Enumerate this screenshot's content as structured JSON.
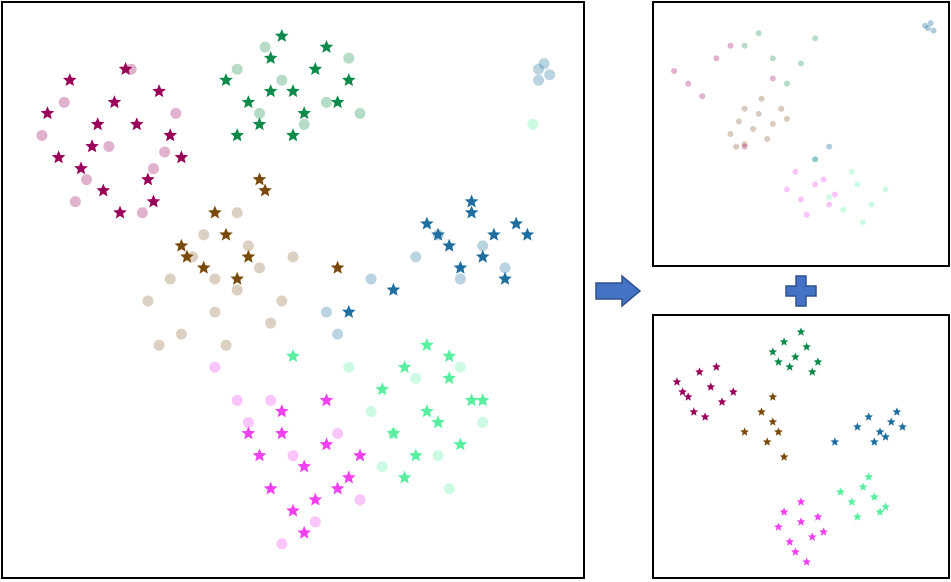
{
  "chart_data": [
    {
      "type": "scatter",
      "xlim": [
        0,
        100
      ],
      "ylim": [
        0,
        100
      ],
      "series": [
        {
          "color": "#9b0059",
          "marker": "circle",
          "opacity": 0.3,
          "x": [
            5,
            9,
            13,
            17,
            21,
            25,
            29,
            11,
            23,
            27
          ],
          "values": [
            78,
            84,
            70,
            76,
            90,
            72,
            82,
            66,
            64,
            75
          ]
        },
        {
          "color": "#0e8a4a",
          "marker": "circle",
          "opacity": 0.3,
          "x": [
            40,
            44,
            48,
            52,
            56,
            60,
            62,
            45
          ],
          "values": [
            90,
            82,
            88,
            80,
            84,
            92,
            82,
            94
          ]
        },
        {
          "color": "#a88a6a",
          "marker": "circle",
          "opacity": 0.4,
          "x": [
            24,
            28,
            32,
            36,
            40,
            44,
            48,
            30,
            34,
            38,
            42,
            46,
            26,
            40,
            36,
            50
          ],
          "values": [
            48,
            52,
            56,
            46,
            50,
            54,
            48,
            42,
            60,
            40,
            58,
            44,
            40,
            64,
            52,
            56
          ]
        },
        {
          "color": "#1e6fa0",
          "marker": "circle",
          "opacity": 0.3,
          "x": [
            72,
            76,
            80,
            84,
            88,
            94,
            95,
            96,
            94,
            56,
            58,
            64
          ],
          "values": [
            56,
            60,
            52,
            58,
            54,
            90,
            91,
            89,
            88,
            46,
            42,
            52
          ]
        },
        {
          "color": "#58f0a0",
          "marker": "circle",
          "opacity": 0.3,
          "x": [
            64,
            68,
            72,
            76,
            80,
            84,
            66,
            78,
            93,
            60
          ],
          "values": [
            28,
            24,
            34,
            20,
            36,
            26,
            18,
            14,
            80,
            36
          ]
        },
        {
          "color": "#f040f0",
          "marker": "circle",
          "opacity": 0.3,
          "x": [
            42,
            46,
            50,
            54,
            58,
            62,
            40,
            48,
            36
          ],
          "values": [
            26,
            30,
            20,
            8,
            24,
            12,
            30,
            4,
            36
          ]
        },
        {
          "color": "#9b0059",
          "marker": "star",
          "opacity": 1,
          "x": [
            6,
            10,
            14,
            18,
            22,
            26,
            30,
            12,
            16,
            20,
            24,
            28,
            8,
            19,
            25,
            15
          ],
          "values": [
            82,
            88,
            76,
            84,
            80,
            86,
            74,
            72,
            68,
            90,
            70,
            78,
            74,
            64,
            66,
            80
          ]
        },
        {
          "color": "#0e8a4a",
          "marker": "star",
          "opacity": 1,
          "x": [
            38,
            42,
            46,
            50,
            54,
            58,
            44,
            48,
            52,
            56,
            40,
            60,
            50,
            46
          ],
          "values": [
            88,
            84,
            92,
            86,
            90,
            84,
            80,
            96,
            82,
            94,
            78,
            88,
            78,
            86
          ]
        },
        {
          "color": "#7a4a0a",
          "marker": "star",
          "opacity": 1,
          "x": [
            30,
            34,
            38,
            42,
            44,
            36,
            40,
            45,
            31,
            58
          ],
          "values": [
            58,
            54,
            60,
            56,
            70,
            64,
            52,
            68,
            56,
            54
          ]
        },
        {
          "color": "#1e6fa0",
          "marker": "star",
          "opacity": 1,
          "x": [
            74,
            78,
            82,
            86,
            90,
            80,
            84,
            88,
            76,
            92,
            82,
            68,
            60
          ],
          "values": [
            62,
            58,
            64,
            60,
            62,
            54,
            56,
            52,
            60,
            60,
            66,
            50,
            46
          ]
        },
        {
          "color": "#58f0a0",
          "marker": "star",
          "opacity": 1,
          "x": [
            66,
            70,
            74,
            78,
            82,
            68,
            72,
            76,
            80,
            84,
            70,
            78,
            74,
            50
          ],
          "values": [
            32,
            36,
            28,
            34,
            30,
            24,
            20,
            26,
            22,
            30,
            16,
            38,
            40,
            38
          ]
        },
        {
          "color": "#f040f0",
          "marker": "star",
          "opacity": 1,
          "x": [
            44,
            48,
            52,
            56,
            60,
            46,
            50,
            54,
            58,
            62,
            48,
            56,
            52,
            42
          ],
          "values": [
            20,
            24,
            18,
            22,
            16,
            14,
            10,
            12,
            14,
            20,
            28,
            30,
            6,
            24
          ]
        }
      ]
    },
    {
      "type": "scatter",
      "xlim": [
        0,
        100
      ],
      "ylim": [
        0,
        100
      ],
      "series": [
        {
          "color": "#a88a6a",
          "marker": "circle",
          "opacity": 0.45,
          "x": [
            25,
            28,
            30,
            33,
            35,
            38,
            40,
            43,
            30,
            36,
            27,
            45
          ],
          "values": [
            50,
            55,
            60,
            52,
            58,
            48,
            54,
            60,
            46,
            64,
            45,
            56
          ]
        },
        {
          "color": "#f040f0",
          "marker": "circle",
          "opacity": 0.3,
          "x": [
            45,
            50,
            55,
            60,
            52,
            58,
            48,
            62
          ],
          "values": [
            28,
            24,
            30,
            22,
            18,
            32,
            35,
            26
          ]
        },
        {
          "color": "#58f0a0",
          "marker": "circle",
          "opacity": 0.3,
          "x": [
            60,
            65,
            70,
            75,
            68,
            72,
            80,
            55
          ],
          "values": [
            25,
            20,
            30,
            22,
            35,
            15,
            28,
            40
          ]
        },
        {
          "color": "#1e6fa0",
          "marker": "circle",
          "opacity": 0.35,
          "x": [
            95,
            96,
            94,
            97,
            60,
            55
          ],
          "values": [
            92,
            94,
            93,
            91,
            45,
            40
          ]
        },
        {
          "color": "#9b0059",
          "marker": "circle",
          "opacity": 0.3,
          "x": [
            5,
            10,
            15,
            20,
            25,
            30,
            40
          ],
          "values": [
            75,
            70,
            65,
            80,
            85,
            45,
            72
          ]
        },
        {
          "color": "#0e8a4a",
          "marker": "circle",
          "opacity": 0.3,
          "x": [
            30,
            35,
            40,
            50,
            45,
            55
          ],
          "values": [
            85,
            90,
            80,
            78,
            70,
            88
          ]
        }
      ]
    },
    {
      "type": "scatter",
      "xlim": [
        0,
        100
      ],
      "ylim": [
        0,
        100
      ],
      "series": [
        {
          "color": "#9b0059",
          "marker": "star",
          "opacity": 1,
          "x": [
            6,
            10,
            14,
            18,
            22,
            26,
            12,
            20,
            16,
            8
          ],
          "values": [
            76,
            70,
            80,
            74,
            68,
            72,
            64,
            82,
            62,
            72
          ]
        },
        {
          "color": "#0e8a4a",
          "marker": "star",
          "opacity": 1,
          "x": [
            40,
            44,
            48,
            52,
            56,
            46,
            50,
            54,
            42
          ],
          "values": [
            88,
            92,
            86,
            90,
            84,
            82,
            96,
            80,
            84
          ]
        },
        {
          "color": "#7a4a0a",
          "marker": "star",
          "opacity": 1,
          "x": [
            36,
            40,
            42,
            38,
            40,
            30,
            44
          ],
          "values": [
            64,
            60,
            56,
            52,
            70,
            56,
            46
          ]
        },
        {
          "color": "#1e6fa0",
          "marker": "star",
          "opacity": 1,
          "x": [
            70,
            74,
            78,
            82,
            86,
            76,
            80,
            84,
            62
          ],
          "values": [
            58,
            62,
            56,
            60,
            58,
            52,
            54,
            64,
            52
          ]
        },
        {
          "color": "#58f0a0",
          "marker": "star",
          "opacity": 1,
          "x": [
            64,
            68,
            72,
            76,
            80,
            70,
            74,
            78
          ],
          "values": [
            32,
            28,
            34,
            30,
            26,
            22,
            38,
            24
          ]
        },
        {
          "color": "#f040f0",
          "marker": "star",
          "opacity": 1,
          "x": [
            42,
            46,
            50,
            54,
            58,
            48,
            52,
            44,
            56,
            50
          ],
          "values": [
            18,
            12,
            20,
            14,
            16,
            8,
            4,
            24,
            22,
            28
          ]
        }
      ]
    }
  ]
}
